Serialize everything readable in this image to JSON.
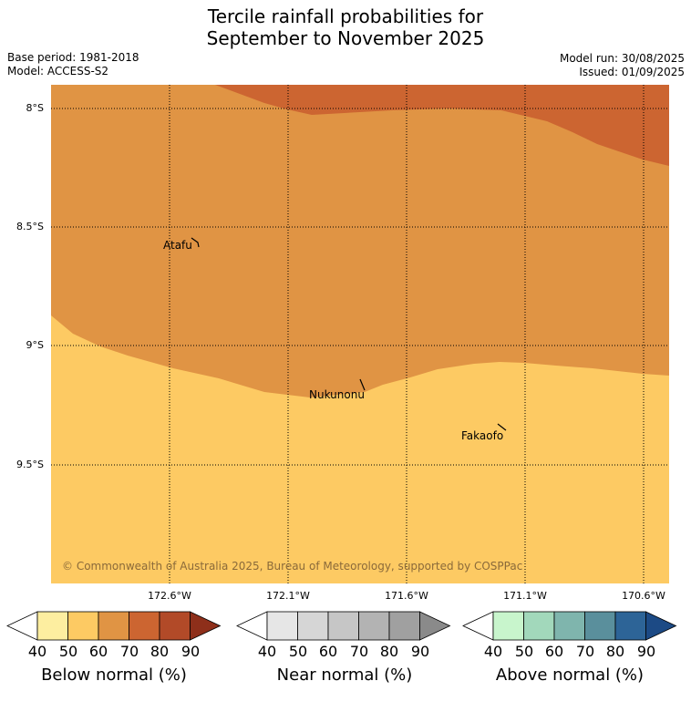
{
  "title_line1": "Tercile rainfall probabilities for",
  "title_line2": "September to November 2025",
  "base_period": "Base period: 1981-2018",
  "model": "Model: ACCESS-S2",
  "model_run": "Model run: 30/08/2025",
  "issued": "Issued: 01/09/2025",
  "lat_labels": [
    "8°S",
    "8.5°S",
    "9°S",
    "9.5°S"
  ],
  "lon_labels": [
    "172.6°W",
    "172.1°W",
    "171.6°W",
    "171.1°W",
    "170.6°W"
  ],
  "places": {
    "atafu": "Atafu",
    "nukunonu": "Nukunonu",
    "fakaofo": "Fakaofo"
  },
  "copyright": "© Commonwealth of Australia 2025, Bureau of Meteorology, supported by COSPPac",
  "colorbars": [
    {
      "title": "Below normal (%)",
      "ticks": [
        "40",
        "50",
        "60",
        "70",
        "80",
        "90"
      ],
      "colors": [
        "#ffffff",
        "#fdeea0",
        "#fdca63",
        "#e09444",
        "#cc6531",
        "#b24a28",
        "#8e2f1a"
      ]
    },
    {
      "title": "Near normal (%)",
      "ticks": [
        "40",
        "50",
        "60",
        "70",
        "80",
        "90"
      ],
      "colors": [
        "#ffffff",
        "#e6e6e6",
        "#d6d6d6",
        "#c6c6c6",
        "#b3b3b3",
        "#a0a0a0",
        "#8a8a8a"
      ]
    },
    {
      "title": "Above normal (%)",
      "ticks": [
        "40",
        "50",
        "60",
        "70",
        "80",
        "90"
      ],
      "colors": [
        "#ffffff",
        "#c8f5cc",
        "#a2d8bb",
        "#7fb5ad",
        "#5a8f9c",
        "#2d6497",
        "#1c4a85"
      ]
    }
  ],
  "map_colors": {
    "zone_60_70": "#cc6531",
    "zone_50_60": "#e09444",
    "zone_40_50": "#fdca63"
  }
}
